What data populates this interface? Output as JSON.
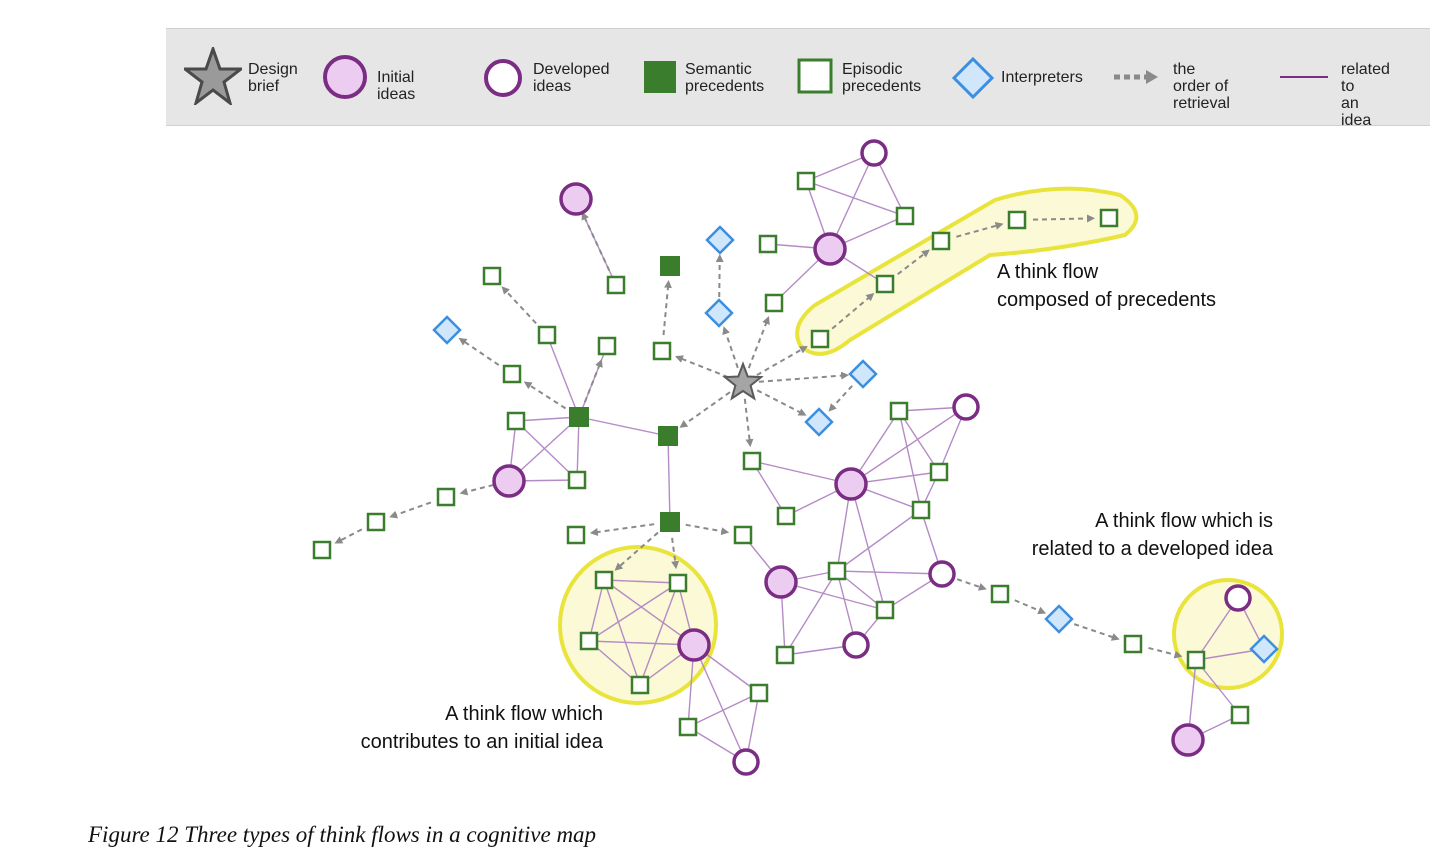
{
  "legend": {
    "design_brief": "Design\nbrief",
    "initial_ideas": "Initial ideas",
    "developed_ideas": "Developed\nideas",
    "semantic_precedents": "Semantic\nprecedents",
    "episodic_precedents": "Episodic\nprecedents",
    "interpreters": "Interpreters",
    "order_of_retrieval": "the order of\nretrieval",
    "related_to_idea": "related to\nan idea"
  },
  "annotations": {
    "precedents_flow": "A think flow\ncomposed of precedents",
    "developed_flow": "A think flow which is\nrelated to a developed idea",
    "initial_flow": "A think flow which\ncontributes to an initial idea"
  },
  "caption": "Figure 12 Three types of think flows in a cognitive map",
  "colors": {
    "purple": "#7b2c83",
    "purple_fill": "#eccdf1",
    "green": "#3a7d2c",
    "blue": "#3c8fe0",
    "blue_fill": "#cfe6fb",
    "gray": "#8a8a8a",
    "highlight": "#e9e43c",
    "highlight_fill": "#fbf9d6",
    "line": "#b58bc6"
  }
}
